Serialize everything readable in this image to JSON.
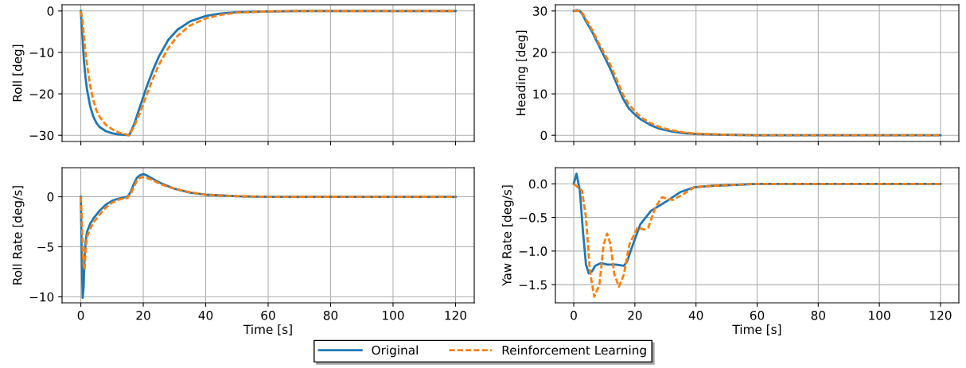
{
  "chart_data": [
    {
      "type": "line",
      "ylabel": "Roll [deg]",
      "xlim": [
        -6,
        126
      ],
      "xticks": [
        0,
        20,
        40,
        60,
        80,
        100,
        120
      ],
      "ylim": [
        -31.5,
        1.5
      ],
      "yticks": [
        -30,
        -20,
        -10,
        0
      ],
      "grid": true,
      "tick_labels": "y",
      "legend": "bottom",
      "series": [
        {
          "name": "Original",
          "color": "#1f77b4",
          "line_style": "solid",
          "x": [
            0,
            0.5,
            1,
            1.5,
            2,
            3,
            4,
            5,
            6,
            8,
            10,
            12,
            14,
            15.5,
            17,
            19,
            21,
            23,
            25,
            28,
            31,
            35,
            40,
            45,
            50,
            60,
            70,
            80,
            100,
            120
          ],
          "values": [
            0,
            -6,
            -12,
            -16,
            -19,
            -23,
            -25.5,
            -27,
            -28,
            -29,
            -29.5,
            -29.8,
            -29.9,
            -30,
            -27.5,
            -23,
            -18.5,
            -14.5,
            -11,
            -7,
            -4.5,
            -2.5,
            -1.2,
            -0.6,
            -0.3,
            -0.1,
            0,
            0,
            0,
            0
          ]
        },
        {
          "name": "Reinforcement Learning",
          "color": "#ff7f0e",
          "line_style": "dashed",
          "x": [
            0,
            0.5,
            1,
            1.5,
            2,
            3,
            4,
            5,
            6,
            8,
            10,
            12,
            14,
            15.5,
            17,
            19,
            21,
            23,
            25,
            28,
            31,
            35,
            40,
            45,
            50,
            60,
            70,
            80,
            100,
            120
          ],
          "values": [
            0,
            -2,
            -6,
            -10,
            -13,
            -18,
            -21.5,
            -24,
            -25.5,
            -27.5,
            -28.5,
            -29.3,
            -29.7,
            -30,
            -28,
            -24.5,
            -20.5,
            -16.5,
            -13,
            -9,
            -6,
            -3.5,
            -1.8,
            -0.9,
            -0.4,
            -0.1,
            0,
            0,
            0,
            0
          ]
        }
      ]
    },
    {
      "type": "line",
      "ylabel": "Heading [deg]",
      "xlim": [
        -6,
        126
      ],
      "xticks": [
        0,
        20,
        40,
        60,
        80,
        100,
        120
      ],
      "ylim": [
        -1.5,
        31.5
      ],
      "yticks": [
        0,
        10,
        20,
        30
      ],
      "grid": true,
      "tick_labels": "y",
      "series": [
        {
          "color": "#1f77b4",
          "line_style": "solid",
          "x": [
            0,
            1,
            2,
            3,
            4,
            6,
            8,
            10,
            12,
            14,
            16,
            18,
            20,
            22,
            25,
            28,
            32,
            36,
            40,
            50,
            60,
            120
          ],
          "values": [
            30,
            30.2,
            30,
            29,
            27.5,
            25,
            22,
            19,
            16,
            12.5,
            9,
            6.5,
            5,
            3.8,
            2.5,
            1.6,
            0.9,
            0.5,
            0.3,
            0.1,
            0,
            0
          ]
        },
        {
          "color": "#ff7f0e",
          "line_style": "dashed",
          "x": [
            0,
            1,
            2,
            3,
            4,
            6,
            8,
            10,
            12,
            14,
            16,
            18,
            20,
            22,
            25,
            28,
            32,
            36,
            40,
            50,
            60,
            120
          ],
          "values": [
            30,
            30,
            30,
            29.3,
            28,
            25.5,
            22.5,
            19.8,
            17,
            13.5,
            10,
            7.5,
            5.8,
            4.3,
            3,
            2,
            1.2,
            0.7,
            0.4,
            0.1,
            0,
            0
          ]
        }
      ]
    },
    {
      "type": "line",
      "ylabel": "Roll Rate [deg/s]",
      "xlabel": "Time [s]",
      "xlim": [
        -6,
        126
      ],
      "xticks": [
        0,
        20,
        40,
        60,
        80,
        100,
        120
      ],
      "ylim": [
        -10.6,
        2.9
      ],
      "yticks": [
        -10,
        -5,
        0
      ],
      "grid": true,
      "series": [
        {
          "color": "#1f77b4",
          "line_style": "solid",
          "x": [
            0,
            0.3,
            0.6,
            0.9,
            1.2,
            1.6,
            2,
            3,
            4,
            6,
            8,
            10,
            12,
            14,
            15,
            16,
            17,
            18,
            19,
            20,
            21,
            23,
            26,
            30,
            35,
            40,
            50,
            60,
            120
          ],
          "values": [
            0,
            -6,
            -10.1,
            -9,
            -6,
            -4.3,
            -3.5,
            -2.7,
            -2.2,
            -1.4,
            -0.8,
            -0.4,
            -0.2,
            -0.05,
            0,
            0.5,
            1.3,
            1.9,
            2.15,
            2.25,
            2.15,
            1.8,
            1.3,
            0.8,
            0.4,
            0.2,
            0.05,
            0,
            0
          ]
        },
        {
          "color": "#ff7f0e",
          "line_style": "dashed",
          "x": [
            0,
            0.3,
            0.6,
            0.9,
            1.2,
            1.6,
            2,
            3,
            4,
            6,
            8,
            10,
            12,
            14,
            15,
            16,
            17,
            18,
            19,
            20,
            21,
            23,
            26,
            30,
            35,
            40,
            50,
            60,
            120
          ],
          "values": [
            0,
            -2,
            -5,
            -7,
            -7.3,
            -5,
            -4,
            -3.2,
            -2.6,
            -1.8,
            -1.1,
            -0.6,
            -0.3,
            -0.15,
            -0.1,
            0.3,
            1,
            1.6,
            1.9,
            1.95,
            1.9,
            1.65,
            1.2,
            0.8,
            0.45,
            0.2,
            0.05,
            0,
            0
          ]
        }
      ]
    },
    {
      "type": "line",
      "ylabel": "Yaw Rate [deg/s]",
      "xlabel": "Time [s]",
      "xlim": [
        -6,
        126
      ],
      "xticks": [
        0,
        20,
        40,
        60,
        80,
        100,
        120
      ],
      "ylim": [
        -1.77,
        0.24
      ],
      "yticks": [
        {
          "value": -1.5,
          "label": "−1.5"
        },
        {
          "value": -1.0,
          "label": "−1.0"
        },
        {
          "value": -0.5,
          "label": "−0.5"
        },
        {
          "value": 0.0,
          "label": "0.0"
        }
      ],
      "grid": true,
      "series": [
        {
          "color": "#1f77b4",
          "line_style": "solid",
          "x": [
            0,
            0.9,
            2,
            3,
            4,
            4.9,
            6,
            7,
            8.9,
            11,
            13.8,
            16.4,
            17.5,
            19,
            21.8,
            25.3,
            30.7,
            35,
            39.5,
            45,
            50,
            60,
            120
          ],
          "values": [
            0,
            0.15,
            -0.1,
            -0.7,
            -1.2,
            -1.33,
            -1.3,
            -1.22,
            -1.18,
            -1.2,
            -1.2,
            -1.22,
            -1.15,
            -0.95,
            -0.6,
            -0.4,
            -0.25,
            -0.12,
            -0.05,
            -0.03,
            -0.02,
            0,
            0
          ]
        },
        {
          "color": "#ff7f0e",
          "line_style": "dashed",
          "x": [
            0,
            2.7,
            4,
            5.3,
            6.7,
            8.4,
            9.8,
            10.9,
            12,
            13.3,
            14.8,
            16.4,
            18.2,
            20.9,
            23.1,
            24.4,
            26.7,
            28.9,
            32.4,
            36,
            39.5,
            45,
            60,
            120
          ],
          "values": [
            0,
            -0.1,
            -0.5,
            -1.3,
            -1.68,
            -1.5,
            -0.9,
            -0.74,
            -0.9,
            -1.35,
            -1.53,
            -1.35,
            -0.9,
            -0.65,
            -0.68,
            -0.65,
            -0.35,
            -0.2,
            -0.24,
            -0.15,
            -0.05,
            -0.03,
            0,
            0
          ]
        }
      ]
    }
  ]
}
